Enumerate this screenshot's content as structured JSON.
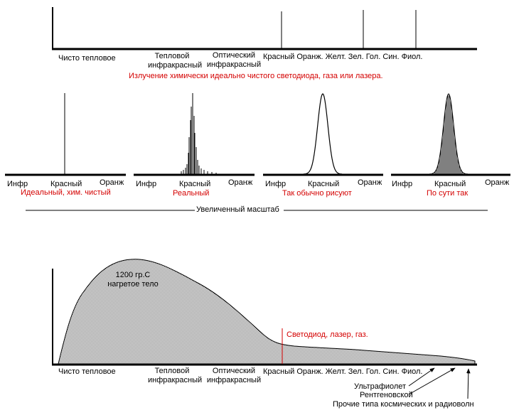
{
  "colors": {
    "ink": "#000000",
    "accent": "#d40000",
    "fill": "#c8c8c8"
  },
  "top_panel": {
    "labels": {
      "thermal": "Чисто тепловое",
      "thermal_ir": "Тепловой\nинфракрасный",
      "optical_ir": "Оптический\nинфракрасный",
      "colors": "Красный Оранж. Желт. Зел. Гол. Син. Фиол."
    },
    "caption": "Излучение химически идеально чистого светодиода, газа или лазера."
  },
  "middle": {
    "panels": [
      {
        "x_labels": [
          "Инфр",
          "Красный",
          "Оранж"
        ],
        "caption": "Идеальный, хим. чистый"
      },
      {
        "x_labels": [
          "Инфр",
          "Красный",
          "Оранж"
        ],
        "caption": "Реальный"
      },
      {
        "x_labels": [
          "Инфр",
          "Красный",
          "Оранж"
        ],
        "caption": "Так обычно рисуют"
      },
      {
        "x_labels": [
          "Инфр",
          "Красный",
          "Оранж"
        ],
        "caption": "По сути так"
      }
    ],
    "zoom_caption": "Увеличенный масштаб"
  },
  "bottom_panel": {
    "curve_label": "1200 гр.С\nнагретое тело",
    "marker_label": "Светодиод, лазер, газ.",
    "labels": {
      "thermal": "Чисто тепловое",
      "thermal_ir": "Тепловой\nинфракрасный",
      "optical_ir": "Оптический\nинфракрасный",
      "colors": "Красный Оранж. Желт. Зел. Гол. Син. Фиол."
    },
    "callouts": [
      "Ультрафиолет",
      "Рентгеновской",
      "Прочие типа космических и радиоволн"
    ]
  }
}
